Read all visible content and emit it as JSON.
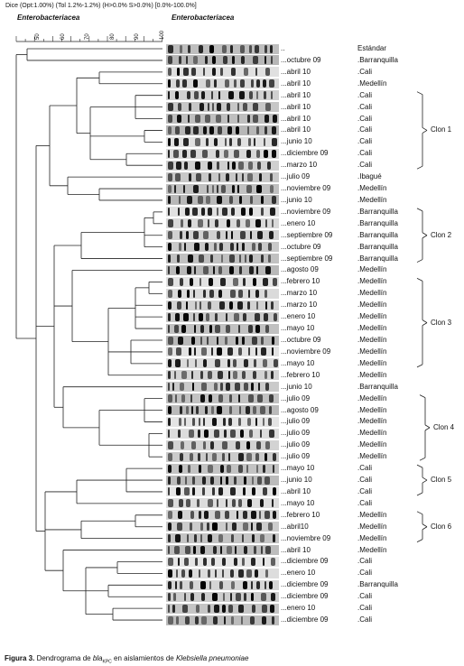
{
  "header": {
    "similarity_line": "Dice (Opt:1.00%) (Tol 1.2%-1.2%) (H>0.0% S>0.0%) [0.0%-100.0%]",
    "left_title": "Enterobacteriacea",
    "right_title": "Enterobacteriacea"
  },
  "scale_ticks": [
    "50",
    "60",
    "70",
    "80",
    "90",
    "100"
  ],
  "rows": [
    {
      "date": "..",
      "city": "Estándar"
    },
    {
      "date": "...octubre 09",
      "city": ".Barranquilla"
    },
    {
      "date": "...abril 10",
      "city": ".Cali"
    },
    {
      "date": "...abril 10",
      "city": ".Medellín"
    },
    {
      "date": "...abril 10",
      "city": ".Cali"
    },
    {
      "date": "...abril 10",
      "city": ".Cali"
    },
    {
      "date": "...abril 10",
      "city": ".Cali"
    },
    {
      "date": "...abril 10",
      "city": ".Cali"
    },
    {
      "date": "...junio 10",
      "city": ".Cali"
    },
    {
      "date": "...diciembre 09",
      "city": ".Cali"
    },
    {
      "date": "...marzo 10",
      "city": ".Cali"
    },
    {
      "date": "...julio 09",
      "city": ".Ibagué"
    },
    {
      "date": "...noviembre 09",
      "city": ".Medellín"
    },
    {
      "date": "...junio 10",
      "city": ".Medellín"
    },
    {
      "date": "...noviembre 09",
      "city": ".Barranquilla"
    },
    {
      "date": "...enero 10",
      "city": ".Barranquilla"
    },
    {
      "date": "...septiembre 09",
      "city": ".Barranquilla"
    },
    {
      "date": "...octubre 09",
      "city": ".Barranquilla"
    },
    {
      "date": "...septiembre 09",
      "city": ".Barranquilla"
    },
    {
      "date": "...agosto 09",
      "city": ".Medellín"
    },
    {
      "date": "...febrero 10",
      "city": ".Medellín"
    },
    {
      "date": "...marzo 10",
      "city": ".Medellín"
    },
    {
      "date": "...marzo 10",
      "city": ".Medellín"
    },
    {
      "date": "...enero 10",
      "city": ".Medellín"
    },
    {
      "date": "...mayo 10",
      "city": ".Medellín"
    },
    {
      "date": "...octubre 09",
      "city": ".Medellín"
    },
    {
      "date": "...noviembre 09",
      "city": ".Medellín"
    },
    {
      "date": "...mayo 10",
      "city": ".Medellín"
    },
    {
      "date": "...febrero 10",
      "city": ".Medellín"
    },
    {
      "date": "...junio 10",
      "city": ".Barranquilla"
    },
    {
      "date": "...julio 09",
      "city": ".Medellín"
    },
    {
      "date": "...agosto 09",
      "city": ".Medellín"
    },
    {
      "date": "...julio 09",
      "city": ".Medellín"
    },
    {
      "date": "...julio 09",
      "city": ".Medellín"
    },
    {
      "date": "...julio 09",
      "city": ".Medellín"
    },
    {
      "date": "...julio 09",
      "city": ".Medellín"
    },
    {
      "date": "...mayo 10",
      "city": ".Cali"
    },
    {
      "date": "...junio 10",
      "city": ".Cali"
    },
    {
      "date": "...abril 10",
      "city": ".Cali"
    },
    {
      "date": "...mayo 10",
      "city": ".Cali"
    },
    {
      "date": "...febrero 10",
      "city": ".Medellín"
    },
    {
      "date": "...abril10",
      "city": ".Medellín"
    },
    {
      "date": "...noviembre 09",
      "city": ".Medellín"
    },
    {
      "date": "...abril 10",
      "city": ".Medellín"
    },
    {
      "date": "...diciembre 09",
      "city": ".Cali"
    },
    {
      "date": "...enero 10",
      "city": ".Cali"
    },
    {
      "date": "...diciembre 09",
      "city": ".Barranquilla"
    },
    {
      "date": "...diciembre 09",
      "city": ".Cali"
    },
    {
      "date": "...enero 10",
      "city": ".Cali"
    },
    {
      "date": "...diciembre 09",
      "city": ".Cali"
    }
  ],
  "clones": [
    {
      "label": "Clon 1",
      "from": 4,
      "to": 10
    },
    {
      "label": "Clon 2",
      "from": 14,
      "to": 18
    },
    {
      "label": "Clon 3",
      "from": 20,
      "to": 27
    },
    {
      "label": "Clon 4",
      "from": 30,
      "to": 35
    },
    {
      "label": "Clon 5",
      "from": 36,
      "to": 38
    },
    {
      "label": "Clon 6",
      "from": 40,
      "to": 42
    }
  ],
  "caption": {
    "figure": "Figura 3.",
    "text_before": " Dendrograma de ",
    "gene": "bla",
    "gene_sub": "KPC",
    "text_middle": " en aislamientos de ",
    "species": "Klebsiella pneumoniae"
  }
}
